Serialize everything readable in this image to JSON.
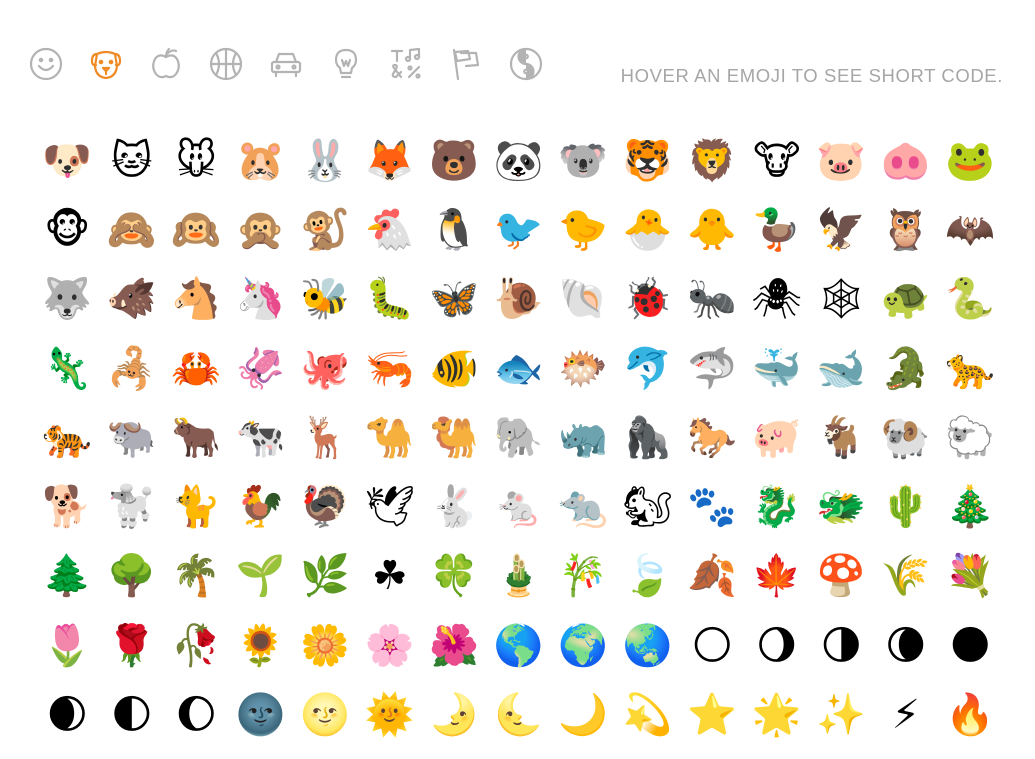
{
  "categories": [
    {
      "name": "smiley-icon",
      "active": false
    },
    {
      "name": "dog-icon",
      "active": true
    },
    {
      "name": "apple-icon",
      "active": false
    },
    {
      "name": "basketball-icon",
      "active": false
    },
    {
      "name": "car-icon",
      "active": false
    },
    {
      "name": "lightbulb-icon",
      "active": false
    },
    {
      "name": "symbols-icon",
      "active": false
    },
    {
      "name": "flag-icon",
      "active": false
    },
    {
      "name": "yin-yang-icon",
      "active": false
    }
  ],
  "hint": "HOVER AN EMOJI TO SEE SHORT CODE.",
  "colors": {
    "active": "#f08a24",
    "inactive": "#b3b3b3",
    "hint": "#a6a6a6"
  },
  "emojis": [
    "🐶",
    "🐱",
    "🐭",
    "🐹",
    "🐰",
    "🦊",
    "🐻",
    "🐼",
    "🐨",
    "🐯",
    "🦁",
    "🐮",
    "🐷",
    "🐽",
    "🐸",
    "🐵",
    "🙈",
    "🙉",
    "🙊",
    "🐒",
    "🐔",
    "🐧",
    "🐦",
    "🐤",
    "🐣",
    "🐥",
    "🦆",
    "🦅",
    "🦉",
    "🦇",
    "🐺",
    "🐗",
    "🐴",
    "🦄",
    "🐝",
    "🐛",
    "🦋",
    "🐌",
    "🐚",
    "🐞",
    "🐜",
    "🕷",
    "🕸",
    "🐢",
    "🐍",
    "🦎",
    "🦂",
    "🦀",
    "🦑",
    "🐙",
    "🦐",
    "🐠",
    "🐟",
    "🐡",
    "🐬",
    "🦈",
    "🐳",
    "🐋",
    "🐊",
    "🐆",
    "🐅",
    "🐃",
    "🐂",
    "🐄",
    "🦌",
    "🐪",
    "🐫",
    "🐘",
    "🦏",
    "🦍",
    "🐎",
    "🐖",
    "🐐",
    "🐏",
    "🐑",
    "🐕",
    "🐩",
    "🐈",
    "🐓",
    "🦃",
    "🕊",
    "🐇",
    "🐁",
    "🐀",
    "🐿",
    "🐾",
    "🐉",
    "🐲",
    "🌵",
    "🎄",
    "🌲",
    "🌳",
    "🌴",
    "🌱",
    "🌿",
    "☘",
    "🍀",
    "🎍",
    "🎋",
    "🍃",
    "🍂",
    "🍁",
    "🍄",
    "🌾",
    "💐",
    "🌷",
    "🌹",
    "🥀",
    "🌻",
    "🌼",
    "🌸",
    "🌺",
    "🌎",
    "🌍",
    "🌏",
    "🌕",
    "🌖",
    "🌗",
    "🌘",
    "🌑",
    "🌒",
    "🌓",
    "🌔",
    "🌚",
    "🌝",
    "🌞",
    "🌛",
    "🌜",
    "🌙",
    "💫",
    "⭐",
    "🌟",
    "✨",
    "⚡",
    "🔥"
  ]
}
